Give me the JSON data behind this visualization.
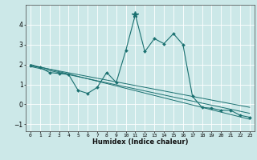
{
  "background_color": "#cce8e8",
  "grid_color": "#ffffff",
  "line_color": "#1a7070",
  "marker_color": "#1a7070",
  "xlabel": "Humidex (Indice chaleur)",
  "xlim": [
    -0.5,
    23.5
  ],
  "ylim": [
    -1.35,
    5.0
  ],
  "yticks": [
    -1,
    0,
    1,
    2,
    3,
    4
  ],
  "xtick_labels": [
    "0",
    "1",
    "2",
    "3",
    "4",
    "5",
    "6",
    "7",
    "8",
    "9",
    "10",
    "11",
    "12",
    "13",
    "14",
    "15",
    "16",
    "17",
    "18",
    "19",
    "20",
    "21",
    "22",
    "23"
  ],
  "series_main": {
    "x": [
      0,
      1,
      2,
      3,
      4,
      5,
      6,
      7,
      8,
      9,
      10,
      11,
      12,
      13,
      14,
      15,
      16,
      17,
      18,
      19,
      20,
      21,
      22,
      23
    ],
    "y": [
      1.95,
      1.85,
      1.6,
      1.55,
      1.5,
      0.7,
      0.55,
      0.85,
      1.6,
      1.1,
      2.7,
      4.5,
      2.65,
      3.3,
      3.05,
      3.55,
      3.0,
      0.4,
      -0.15,
      -0.2,
      -0.3,
      -0.3,
      -0.55,
      -0.65
    ]
  },
  "series_trend1": {
    "x": [
      0,
      23
    ],
    "y": [
      2.0,
      -0.75
    ]
  },
  "series_trend2": {
    "x": [
      0,
      23
    ],
    "y": [
      1.9,
      -0.45
    ]
  },
  "series_trend3": {
    "x": [
      0,
      23
    ],
    "y": [
      1.95,
      -0.15
    ]
  },
  "peak_x": 11,
  "peak_y": 4.5
}
